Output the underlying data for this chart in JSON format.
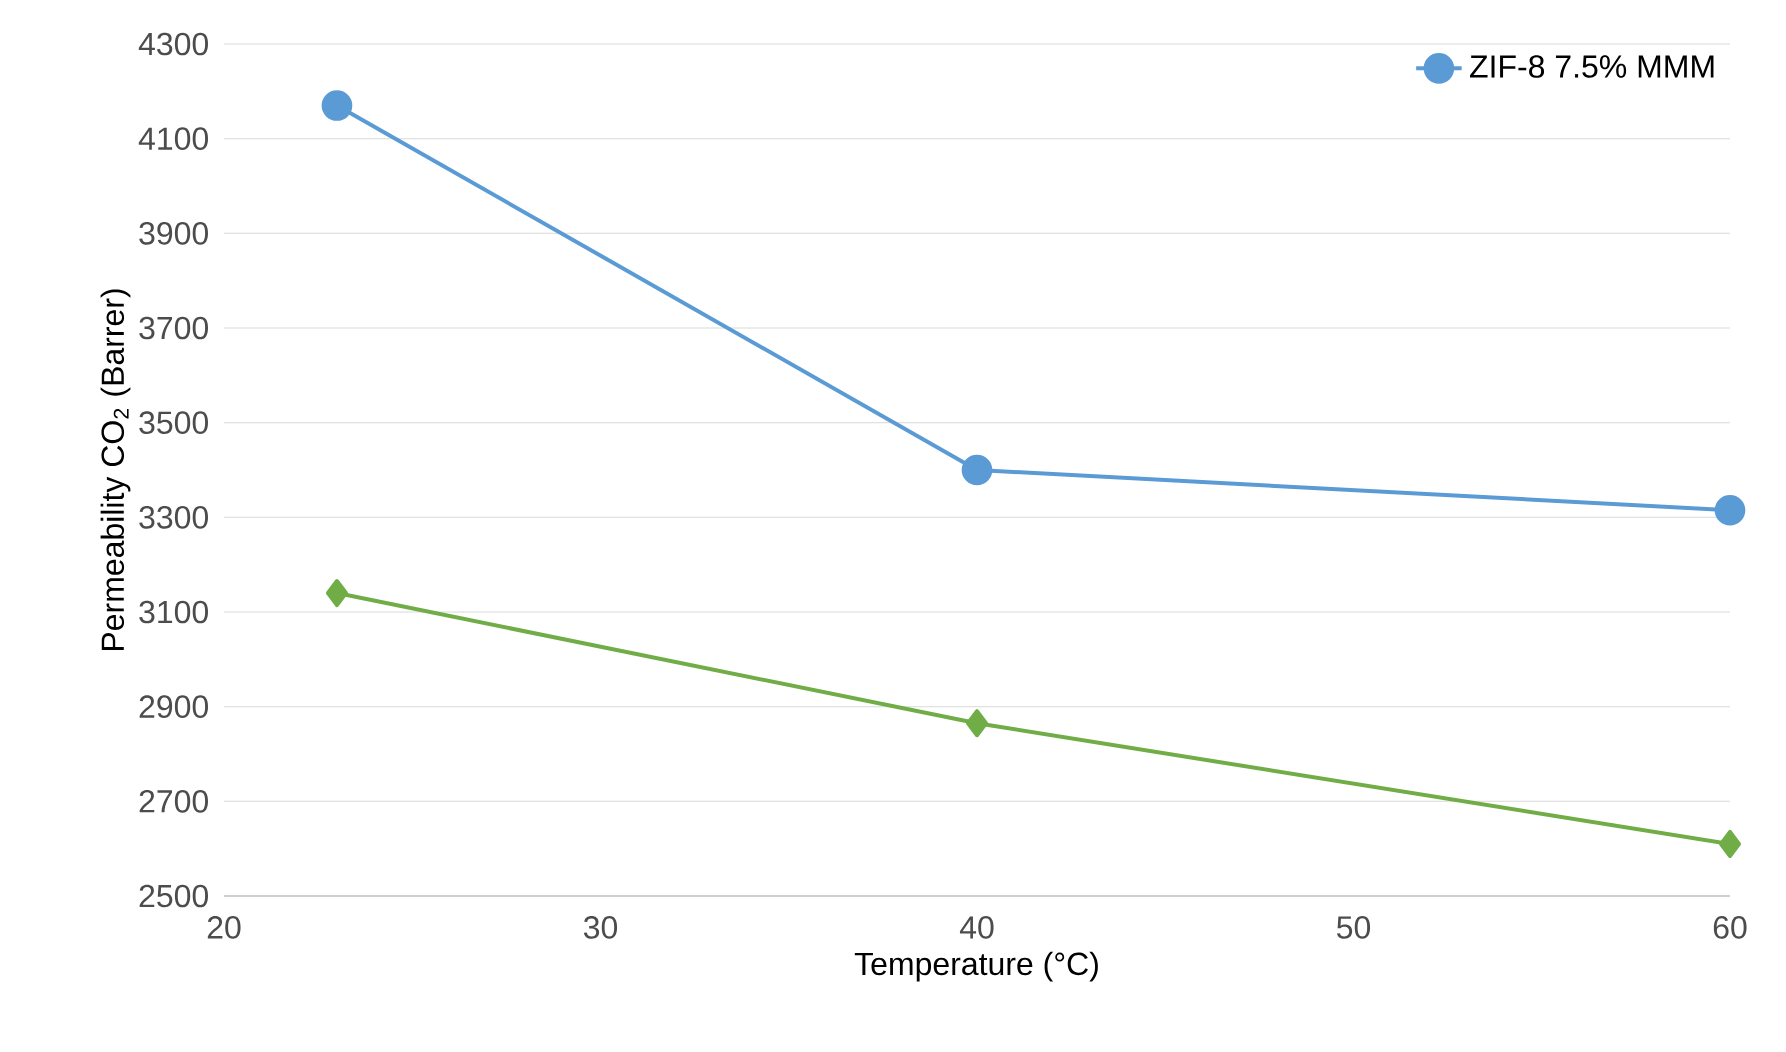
{
  "chart_data": {
    "type": "line",
    "xlabel": "Temperature (°C)",
    "ylabel": "Permeability CO$_{2}$ (Barrer)",
    "xlim": [
      20,
      60
    ],
    "xticks": [
      20,
      30,
      40,
      50,
      60
    ],
    "ylim": [
      2500,
      4300
    ],
    "yticks": [
      2500,
      2700,
      2900,
      3100,
      3300,
      3500,
      3700,
      3900,
      4100,
      4300
    ],
    "grid": "y",
    "legend": "top right",
    "line_style": "solid",
    "series": [
      {
        "name": "ZIF-8 7.5% MMM",
        "color": "#5b9bd5",
        "marker": "circle",
        "x": [
          23,
          40,
          60
        ],
        "values": [
          4170,
          3400,
          3315
        ]
      },
      {
        "color": "#70ad47",
        "marker": "diamond",
        "x": [
          23,
          40,
          60
        ],
        "values": [
          3140,
          2865,
          2610
        ]
      }
    ]
  }
}
